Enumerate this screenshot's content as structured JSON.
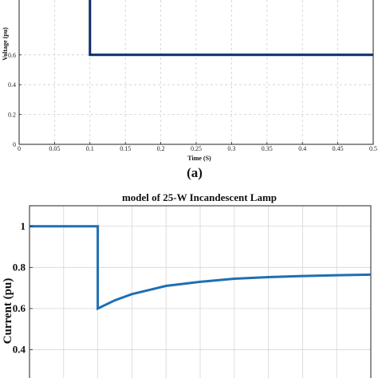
{
  "chart_data": [
    {
      "type": "line",
      "title": "",
      "xlabel": "Time (S)",
      "ylabel": "Voltage (pu)",
      "xlim": [
        0,
        0.5
      ],
      "ylim": [
        0,
        1
      ],
      "x_ticks": [
        "0",
        "0.05",
        "0.1",
        "0.15",
        "0.2",
        "0.25",
        "0.3",
        "0.35",
        "0.4",
        "0.45",
        "0.5"
      ],
      "y_ticks": [
        "0",
        "0.2",
        "0.4",
        "0.6"
      ],
      "grid": true,
      "line_color": "#0d2a6b",
      "series": [
        {
          "x": [
            0.1,
            0.1,
            0.5
          ],
          "y": [
            1.05,
            0.6,
            0.6
          ]
        }
      ],
      "caption": "(a)"
    },
    {
      "type": "line",
      "title": "model of 25-W Incandescent Lamp",
      "xlabel": "",
      "ylabel": "Current (pu)",
      "xlim": [
        0,
        0.5
      ],
      "ylim": [
        0.2,
        1.1
      ],
      "y_ticks": [
        "0.4",
        "0.6",
        "0.8",
        "1"
      ],
      "grid": true,
      "line_color": "#1f6fb2",
      "series": [
        {
          "x": [
            0,
            0.1,
            0.1,
            0.125,
            0.15,
            0.175,
            0.2,
            0.25,
            0.3,
            0.35,
            0.4,
            0.45,
            0.5
          ],
          "y": [
            1.0,
            1.0,
            0.6,
            0.64,
            0.67,
            0.69,
            0.71,
            0.73,
            0.745,
            0.753,
            0.758,
            0.762,
            0.765
          ]
        }
      ]
    }
  ]
}
